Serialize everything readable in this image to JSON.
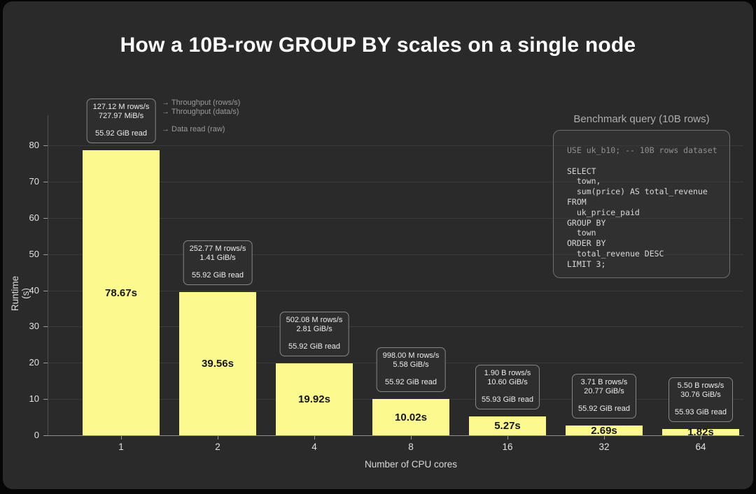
{
  "title": "How a 10B-row GROUP BY scales on a single node",
  "colors": {
    "panel_bg": "#2a2a2a",
    "bar": "#fcfa8e",
    "bar_label": "#161616",
    "grid": "#3a3a3a",
    "annotation_border": "#868686",
    "text_muted": "#9a9a9a"
  },
  "chart_data": {
    "type": "bar",
    "title": "How a 10B-row GROUP BY scales on a single node",
    "xlabel": "Number of CPU cores",
    "ylabel": "Runtime (s)",
    "ylim": [
      0,
      80
    ],
    "yticks": [
      0,
      10,
      20,
      30,
      40,
      50,
      60,
      70,
      80
    ],
    "grid": true,
    "categories": [
      "1",
      "2",
      "4",
      "8",
      "16",
      "32",
      "64"
    ],
    "values": [
      78.67,
      39.56,
      19.92,
      10.02,
      5.27,
      2.69,
      1.82
    ],
    "bar_labels": [
      "78.67s",
      "39.56s",
      "19.92s",
      "10.02s",
      "5.27s",
      "2.69s",
      "1.82s"
    ],
    "annotations": [
      {
        "throughput_rows": "127.12 M rows/s",
        "throughput_data": "727.97 MiB/s",
        "data_read": "55.92 GiB read"
      },
      {
        "throughput_rows": "252.77 M rows/s",
        "throughput_data": "1.41 GiB/s",
        "data_read": "55.92 GiB read"
      },
      {
        "throughput_rows": "502.08 M rows/s",
        "throughput_data": "2.81 GiB/s",
        "data_read": "55.92 GiB read"
      },
      {
        "throughput_rows": "998.00 M rows/s",
        "throughput_data": "5.58 GiB/s",
        "data_read": "55.92 GiB read"
      },
      {
        "throughput_rows": "1.90 B rows/s",
        "throughput_data": "10.60 GiB/s",
        "data_read": "55.93 GiB read"
      },
      {
        "throughput_rows": "3.71 B rows/s",
        "throughput_data": "20.77 GiB/s",
        "data_read": "55.92 GiB read"
      },
      {
        "throughput_rows": "5.50 B rows/s",
        "throughput_data": "30.76 GiB/s",
        "data_read": "55.93 GiB read"
      }
    ],
    "legend": [
      "→ Throughput (rows/s)",
      "→ Throughput (data/s)",
      "→ Data read (raw)"
    ],
    "legend_position": "top-left"
  },
  "code_panel": {
    "title": "Benchmark query (10B rows)",
    "lines": [
      "USE uk_b10; -- 10B rows dataset",
      "",
      "SELECT",
      "  town,",
      "  sum(price) AS total_revenue",
      "FROM",
      "  uk_price_paid",
      "GROUP BY",
      "  town",
      "ORDER BY",
      "  total_revenue DESC",
      "LIMIT 3;"
    ]
  }
}
